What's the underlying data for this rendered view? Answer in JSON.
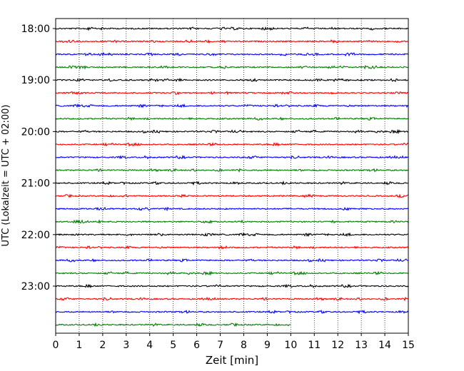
{
  "chart_data": {
    "type": "line",
    "title": "",
    "xlabel": "Zeit  [min]",
    "ylabel": "UTC (Lokalzeit = UTC + 02:00)",
    "xlim": [
      0,
      15
    ],
    "xticks": [
      0,
      1,
      2,
      3,
      4,
      5,
      6,
      7,
      8,
      9,
      10,
      11,
      12,
      13,
      14,
      15
    ],
    "xtick_labels": [
      "0",
      "1",
      "2",
      "3",
      "4",
      "5",
      "6",
      "7",
      "8",
      "9",
      "10",
      "11",
      "12",
      "13",
      "14",
      "15"
    ],
    "ytick_labels": [
      "18:00",
      "19:00",
      "20:00",
      "21:00",
      "22:00",
      "23:00"
    ],
    "ytick_times": [
      "18:00",
      "19:00",
      "20:00",
      "21:00",
      "22:00",
      "23:00"
    ],
    "grid": "vertical-dotted",
    "colors": [
      "#000000",
      "#ff0000",
      "#0000ff",
      "#007f00"
    ],
    "series": [
      {
        "start": "18:00",
        "x_end": 15
      },
      {
        "start": "18:15",
        "x_end": 15
      },
      {
        "start": "18:30",
        "x_end": 15
      },
      {
        "start": "18:45",
        "x_end": 15
      },
      {
        "start": "19:00",
        "x_end": 15
      },
      {
        "start": "19:15",
        "x_end": 15
      },
      {
        "start": "19:30",
        "x_end": 15
      },
      {
        "start": "19:45",
        "x_end": 15
      },
      {
        "start": "20:00",
        "x_end": 15
      },
      {
        "start": "20:15",
        "x_end": 15
      },
      {
        "start": "20:30",
        "x_end": 15
      },
      {
        "start": "20:45",
        "x_end": 15
      },
      {
        "start": "21:00",
        "x_end": 15
      },
      {
        "start": "21:15",
        "x_end": 15
      },
      {
        "start": "21:30",
        "x_end": 15
      },
      {
        "start": "21:45",
        "x_end": 15
      },
      {
        "start": "22:00",
        "x_end": 15
      },
      {
        "start": "22:15",
        "x_end": 15
      },
      {
        "start": "22:30",
        "x_end": 15
      },
      {
        "start": "22:45",
        "x_end": 15
      },
      {
        "start": "23:00",
        "x_end": 15
      },
      {
        "start": "23:15",
        "x_end": 15
      },
      {
        "start": "23:30",
        "x_end": 15
      },
      {
        "start": "23:45",
        "x_end": 10
      }
    ]
  }
}
